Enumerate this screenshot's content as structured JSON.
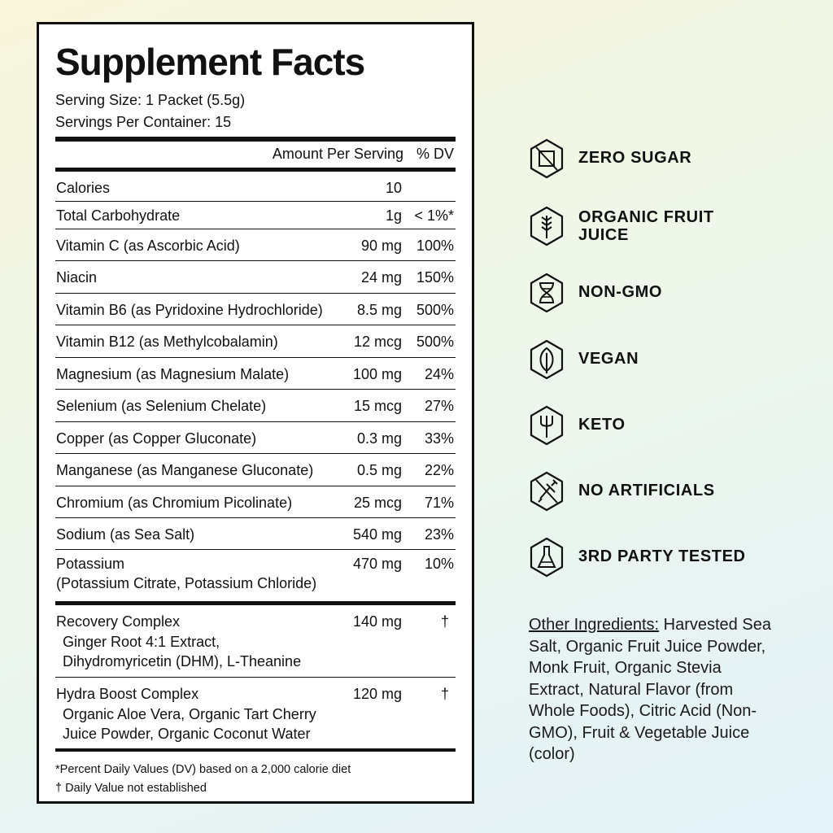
{
  "facts": {
    "title": "Supplement Facts",
    "serving_size": "Serving Size: 1 Packet (5.5g)",
    "servings_per_container": "Servings Per Container: 15",
    "header_amount": "Amount Per Serving",
    "header_dv": "% DV",
    "rows": [
      {
        "name": "Calories",
        "amount": "10",
        "dv": ""
      },
      {
        "name": "Total Carbohydrate",
        "amount": "1g",
        "dv": "< 1%*"
      },
      {
        "name": "Vitamin C (as Ascorbic Acid)",
        "amount": "90 mg",
        "dv": "100%"
      },
      {
        "name": "Niacin",
        "amount": "24 mg",
        "dv": "150%"
      },
      {
        "name": "Vitamin B6 (as Pyridoxine Hydrochloride)",
        "amount": "8.5 mg",
        "dv": "500%"
      },
      {
        "name": "Vitamin B12 (as Methylcobalamin)",
        "amount": "12 mcg",
        "dv": "500%"
      },
      {
        "name": "Magnesium (as Magnesium Malate)",
        "amount": "100 mg",
        "dv": "24%"
      },
      {
        "name": "Selenium (as Selenium Chelate)",
        "amount": "15 mcg",
        "dv": "27%"
      },
      {
        "name": "Copper (as Copper Gluconate)",
        "amount": "0.3 mg",
        "dv": "33%"
      },
      {
        "name": "Manganese (as Manganese Gluconate)",
        "amount": "0.5 mg",
        "dv": "22%"
      },
      {
        "name": "Chromium (as Chromium Picolinate)",
        "amount": "25 mcg",
        "dv": "71%"
      },
      {
        "name": "Sodium (as Sea Salt)",
        "amount": "540 mg",
        "dv": "23%"
      },
      {
        "name": "Potassium",
        "sub": "(Potassium Citrate, Potassium Chloride)",
        "amount": "470 mg",
        "dv": "10%"
      }
    ],
    "complexes": [
      {
        "name": "Recovery Complex",
        "lines": [
          "Ginger Root 4:1 Extract,",
          "Dihydromyricetin (DHM), L-Theanine"
        ],
        "amount": "140 mg",
        "dv": "†"
      },
      {
        "name": "Hydra Boost Complex",
        "lines": [
          "Organic Aloe Vera, Organic Tart Cherry",
          "Juice Powder, Organic Coconut Water"
        ],
        "amount": "120 mg",
        "dv": "†"
      }
    ],
    "footnote_1": "*Percent Daily Values (DV) based on a 2,000 calorie diet",
    "footnote_2": "† Daily Value not established"
  },
  "claims": [
    {
      "icon": "no-sugar-icon",
      "label": "ZERO SUGAR"
    },
    {
      "icon": "wheat-icon",
      "label": "ORGANIC FRUIT\nJUICE"
    },
    {
      "icon": "dna-icon",
      "label": "NON-GMO"
    },
    {
      "icon": "leaf-icon",
      "label": "VEGAN"
    },
    {
      "icon": "fork-icon",
      "label": "KETO"
    },
    {
      "icon": "no-syringe-icon",
      "label": "NO ARTIFICIALS"
    },
    {
      "icon": "flask-icon",
      "label": "3RD PARTY TESTED"
    }
  ],
  "other_ingredients": {
    "heading": "Other Ingredients:",
    "text": " Harvested Sea Salt, Organic Fruit Juice Powder, Monk Fruit, Organic Stevia Extract, Natural Flavor (from Whole Foods), Citric Acid (Non-GMO), Fruit & Vegetable Juice (color)"
  }
}
